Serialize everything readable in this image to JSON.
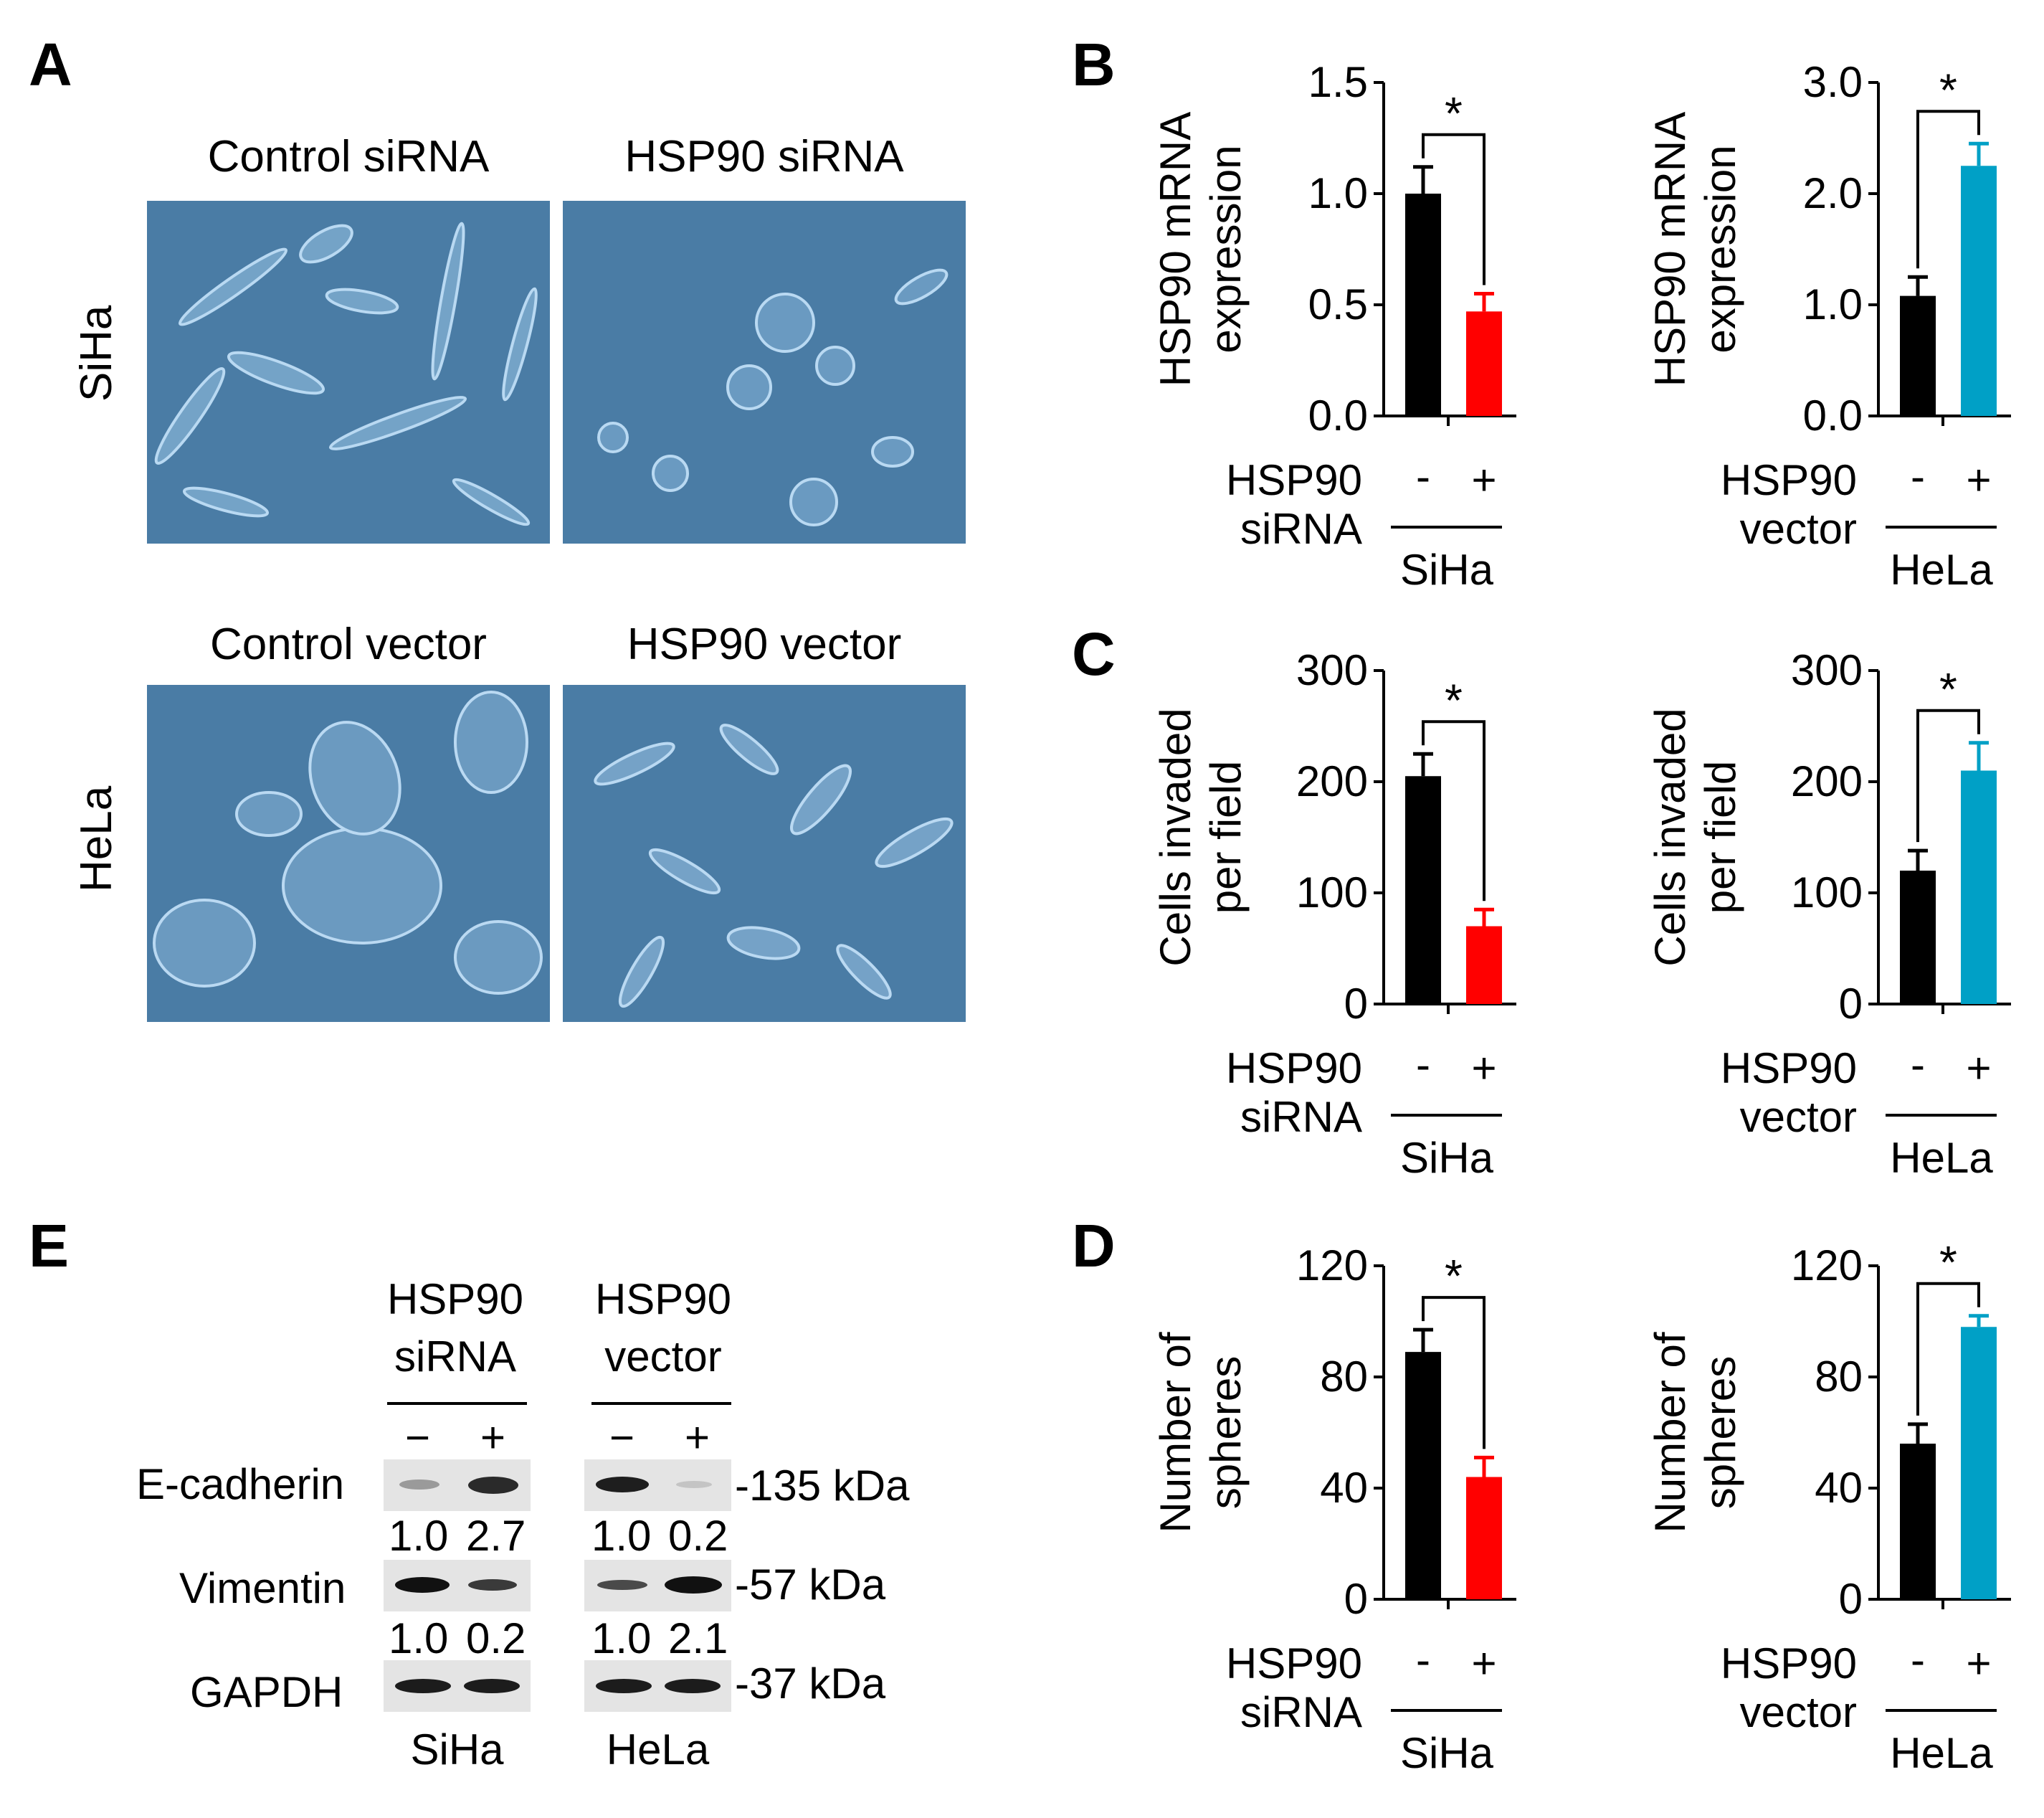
{
  "panels": {
    "A": {
      "letter": "A",
      "col_titles_top": [
        "Control siRNA",
        "HSP90 siRNA"
      ],
      "col_titles_bottom": [
        "Control vector",
        "HSP90 vector"
      ],
      "row_labels": [
        "SiHa",
        "HeLa"
      ]
    },
    "B": {
      "letter": "B"
    },
    "C": {
      "letter": "C"
    },
    "D": {
      "letter": "D"
    },
    "E": {
      "letter": "E",
      "group1_title": [
        "HSP90",
        "siRNA"
      ],
      "group2_title": [
        "HSP90",
        "vector"
      ],
      "signs": [
        "−",
        "+"
      ],
      "rows": [
        {
          "label": "E-cadherin",
          "size": "-135 kDa",
          "g1_quant": [
            "1.0",
            "2.7"
          ],
          "g2_quant": [
            "1.0",
            "0.2"
          ]
        },
        {
          "label": "Vimentin",
          "size": "-57 kDa",
          "g1_quant": [
            "1.0",
            "0.2"
          ],
          "g2_quant": [
            "1.0",
            "2.1"
          ]
        },
        {
          "label": "GAPDH",
          "size": "-37 kDa"
        }
      ],
      "cell_lines": [
        "SiHa",
        "HeLa"
      ]
    }
  },
  "colors": {
    "control": "#000000",
    "sirna": "#ff0000",
    "vector": "#00a0c6",
    "micrograph": "#4a7ca5"
  },
  "chart_data": [
    {
      "panel": "B",
      "type": "bar",
      "ylabel": [
        "HSP90 mRNA",
        "expression"
      ],
      "yticks": [
        "0.0",
        "0.5",
        "1.0",
        "1.5"
      ],
      "ylim": [
        0,
        1.5
      ],
      "treatment_label": [
        "HSP90",
        "siRNA"
      ],
      "categories": [
        "-",
        "+"
      ],
      "cell_line": "SiHa",
      "values": [
        1.0,
        0.47
      ],
      "errors": [
        0.12,
        0.08
      ],
      "significance": "*",
      "colors": [
        "#000000",
        "#ff0000"
      ]
    },
    {
      "panel": "B",
      "type": "bar",
      "ylabel": [
        "HSP90 mRNA",
        "expression"
      ],
      "yticks": [
        "0.0",
        "1.0",
        "2.0",
        "3.0"
      ],
      "ylim": [
        0,
        3.0
      ],
      "treatment_label": [
        "HSP90",
        "vector"
      ],
      "categories": [
        "-",
        "+"
      ],
      "cell_line": "HeLa",
      "values": [
        1.08,
        2.25
      ],
      "errors": [
        0.17,
        0.2
      ],
      "significance": "*",
      "colors": [
        "#000000",
        "#00a0c6"
      ]
    },
    {
      "panel": "C",
      "type": "bar",
      "ylabel": [
        "Cells invaded",
        "per field"
      ],
      "yticks": [
        "0",
        "100",
        "200",
        "300"
      ],
      "ylim": [
        0,
        300
      ],
      "treatment_label": [
        "HSP90",
        "siRNA"
      ],
      "categories": [
        "-",
        "+"
      ],
      "cell_line": "SiHa",
      "values": [
        205,
        70
      ],
      "errors": [
        20,
        15
      ],
      "significance": "*",
      "colors": [
        "#000000",
        "#ff0000"
      ]
    },
    {
      "panel": "C",
      "type": "bar",
      "ylabel": [
        "Cells invaded",
        "per field"
      ],
      "yticks": [
        "0",
        "100",
        "200",
        "300"
      ],
      "ylim": [
        0,
        300
      ],
      "treatment_label": [
        "HSP90",
        "vector"
      ],
      "categories": [
        "-",
        "+"
      ],
      "cell_line": "HeLa",
      "values": [
        120,
        210
      ],
      "errors": [
        18,
        25
      ],
      "significance": "*",
      "colors": [
        "#000000",
        "#00a0c6"
      ]
    },
    {
      "panel": "D",
      "type": "bar",
      "ylabel": [
        "Number of",
        "spheres"
      ],
      "yticks": [
        "0",
        "40",
        "80",
        "120"
      ],
      "ylim": [
        0,
        120
      ],
      "treatment_label": [
        "HSP90",
        "siRNA"
      ],
      "categories": [
        "-",
        "+"
      ],
      "cell_line": "SiHa",
      "values": [
        89,
        44
      ],
      "errors": [
        8,
        7
      ],
      "significance": "*",
      "colors": [
        "#000000",
        "#ff0000"
      ]
    },
    {
      "panel": "D",
      "type": "bar",
      "ylabel": [
        "Number of",
        "spheres"
      ],
      "yticks": [
        "0",
        "40",
        "80",
        "120"
      ],
      "ylim": [
        0,
        120
      ],
      "treatment_label": [
        "HSP90",
        "vector"
      ],
      "categories": [
        "-",
        "+"
      ],
      "cell_line": "HeLa",
      "values": [
        56,
        98
      ],
      "errors": [
        7,
        4
      ],
      "significance": "*",
      "colors": [
        "#000000",
        "#00a0c6"
      ]
    }
  ]
}
